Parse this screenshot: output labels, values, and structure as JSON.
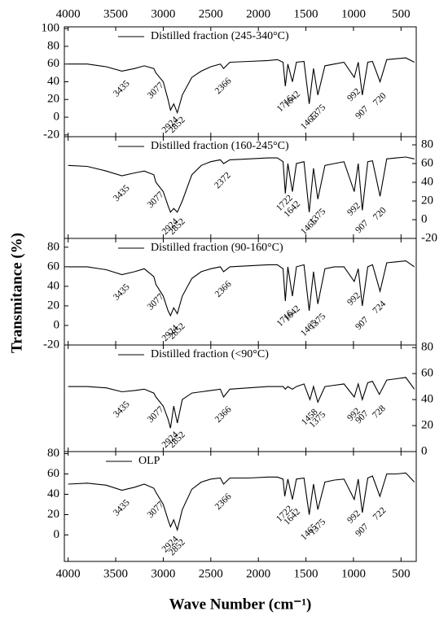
{
  "x_axis": {
    "label": "Wave Number (cm⁻¹)",
    "xlim": [
      4040,
      340
    ],
    "xticks": [
      4000,
      3500,
      3000,
      2500,
      2000,
      1500,
      1000,
      500
    ]
  },
  "y_label": "Transmitance (%)",
  "chart_data": [
    {
      "type": "line",
      "axis_side": "left",
      "ylim": [
        -22,
        102
      ],
      "yticks": [
        -20,
        0,
        20,
        40,
        60,
        80,
        100
      ],
      "series": [
        {
          "name": "Distilled fraction (245-340°C)",
          "color": "#000000",
          "x": [
            4000,
            3800,
            3600,
            3435,
            3300,
            3200,
            3100,
            3077,
            3000,
            2950,
            2924,
            2890,
            2852,
            2800,
            2700,
            2600,
            2500,
            2400,
            2366,
            2300,
            2100,
            1900,
            1800,
            1740,
            1716,
            1690,
            1642,
            1600,
            1520,
            1465,
            1420,
            1375,
            1300,
            1200,
            1100,
            992,
            950,
            907,
            850,
            800,
            720,
            650,
            550,
            450,
            360
          ],
          "values": [
            60,
            60,
            57,
            52,
            55,
            58,
            55,
            50,
            40,
            20,
            8,
            15,
            5,
            25,
            45,
            52,
            57,
            60,
            55,
            62,
            63,
            64,
            65,
            62,
            35,
            60,
            40,
            62,
            63,
            15,
            55,
            25,
            58,
            60,
            62,
            45,
            62,
            25,
            62,
            63,
            40,
            65,
            66,
            67,
            62
          ]
        }
      ],
      "annotations": [
        "3435",
        "3077",
        "2924",
        "2852",
        "2366",
        "1716",
        "1642",
        "1465",
        "1375",
        "992",
        "907",
        "720"
      ]
    },
    {
      "type": "line",
      "axis_side": "right",
      "ylim": [
        -20,
        88.7
      ],
      "yticks": [
        -20,
        0,
        20,
        40,
        60,
        80
      ],
      "series": [
        {
          "name": "Distilled fraction (160-245°C)",
          "color": "#000000",
          "x": [
            4000,
            3800,
            3600,
            3435,
            3300,
            3200,
            3100,
            3077,
            3000,
            2950,
            2924,
            2890,
            2852,
            2800,
            2700,
            2600,
            2500,
            2400,
            2366,
            2300,
            2100,
            1900,
            1800,
            1740,
            1716,
            1690,
            1642,
            1600,
            1520,
            1465,
            1420,
            1375,
            1300,
            1200,
            1100,
            992,
            950,
            907,
            850,
            800,
            720,
            650,
            550,
            450,
            360
          ],
          "values": [
            58,
            57,
            52,
            47,
            50,
            52,
            48,
            40,
            30,
            15,
            8,
            12,
            8,
            20,
            48,
            58,
            62,
            64,
            60,
            64,
            65,
            66,
            66,
            62,
            28,
            60,
            30,
            60,
            62,
            8,
            55,
            22,
            58,
            60,
            62,
            30,
            60,
            10,
            62,
            63,
            25,
            65,
            66,
            67,
            65
          ]
        }
      ],
      "annotations": [
        "3435",
        "3077",
        "2924",
        "2852",
        "2372",
        "1722",
        "1642",
        "1465",
        "1375",
        "992",
        "907",
        "720"
      ]
    },
    {
      "type": "line",
      "axis_side": "left",
      "ylim": [
        -20,
        89
      ],
      "yticks": [
        -20,
        0,
        20,
        40,
        60,
        80
      ],
      "series": [
        {
          "name": "Distilled fraction (90-160°C)",
          "color": "#000000",
          "x": [
            4000,
            3800,
            3600,
            3435,
            3300,
            3200,
            3100,
            3077,
            3000,
            2950,
            2924,
            2890,
            2852,
            2800,
            2700,
            2600,
            2500,
            2400,
            2366,
            2300,
            2100,
            1900,
            1800,
            1740,
            1716,
            1690,
            1642,
            1600,
            1520,
            1465,
            1420,
            1375,
            1300,
            1200,
            1100,
            992,
            950,
            907,
            850,
            800,
            720,
            650,
            550,
            450,
            360
          ],
          "values": [
            60,
            60,
            57,
            52,
            55,
            58,
            50,
            42,
            30,
            15,
            10,
            18,
            12,
            30,
            48,
            55,
            58,
            60,
            55,
            60,
            61,
            62,
            62,
            58,
            25,
            60,
            30,
            60,
            62,
            15,
            55,
            22,
            58,
            60,
            60,
            45,
            58,
            20,
            60,
            62,
            35,
            64,
            65,
            66,
            60
          ]
        }
      ],
      "annotations": [
        "3435",
        "3077",
        "2924",
        "2852",
        "2366",
        "1716",
        "1642",
        "1465",
        "1375",
        "992",
        "907",
        "724"
      ]
    },
    {
      "type": "line",
      "axis_side": "right",
      "ylim": [
        0,
        82
      ],
      "yticks": [
        0,
        20,
        40,
        60,
        80
      ],
      "series": [
        {
          "name": "Distilled fraction (<90°C)",
          "color": "#000000",
          "x": [
            4000,
            3800,
            3600,
            3435,
            3300,
            3200,
            3100,
            3077,
            3000,
            2950,
            2924,
            2890,
            2852,
            2800,
            2700,
            2600,
            2500,
            2400,
            2366,
            2300,
            2100,
            1900,
            1800,
            1740,
            1716,
            1690,
            1642,
            1600,
            1520,
            1458,
            1420,
            1375,
            1300,
            1200,
            1100,
            992,
            950,
            907,
            850,
            800,
            728,
            650,
            550,
            450,
            360
          ],
          "values": [
            50,
            50,
            49,
            46,
            47,
            48,
            45,
            42,
            35,
            25,
            18,
            35,
            22,
            40,
            45,
            46,
            47,
            48,
            42,
            48,
            49,
            50,
            50,
            50,
            48,
            50,
            48,
            50,
            52,
            40,
            50,
            38,
            50,
            51,
            52,
            42,
            52,
            40,
            53,
            54,
            44,
            55,
            56,
            57,
            48
          ]
        }
      ],
      "annotations": [
        "3435",
        "3077",
        "2924",
        "2852",
        "2366",
        "1458",
        "1375",
        "992",
        "907",
        "728"
      ]
    },
    {
      "type": "line",
      "axis_side": "left",
      "ylim": [
        -26,
        82
      ],
      "yticks": [
        0,
        20,
        40,
        60,
        80
      ],
      "series": [
        {
          "name": "OLP",
          "color": "#000000",
          "x": [
            4000,
            3800,
            3600,
            3435,
            3300,
            3200,
            3100,
            3077,
            3000,
            2950,
            2924,
            2890,
            2852,
            2800,
            2700,
            2600,
            2500,
            2400,
            2366,
            2300,
            2100,
            1900,
            1800,
            1740,
            1722,
            1690,
            1642,
            1600,
            1520,
            1465,
            1420,
            1375,
            1300,
            1200,
            1100,
            992,
            950,
            907,
            850,
            800,
            722,
            650,
            550,
            450,
            360
          ],
          "values": [
            50,
            51,
            49,
            44,
            47,
            50,
            46,
            42,
            30,
            15,
            8,
            15,
            5,
            25,
            45,
            52,
            55,
            56,
            50,
            56,
            56,
            57,
            57,
            55,
            38,
            55,
            35,
            55,
            56,
            20,
            50,
            25,
            52,
            54,
            55,
            35,
            55,
            22,
            56,
            58,
            38,
            60,
            60,
            61,
            52
          ]
        }
      ],
      "annotations": [
        "3435",
        "3077",
        "2924",
        "2852",
        "2366",
        "1722",
        "1642",
        "1465",
        "1375",
        "992",
        "907",
        "722"
      ]
    }
  ]
}
